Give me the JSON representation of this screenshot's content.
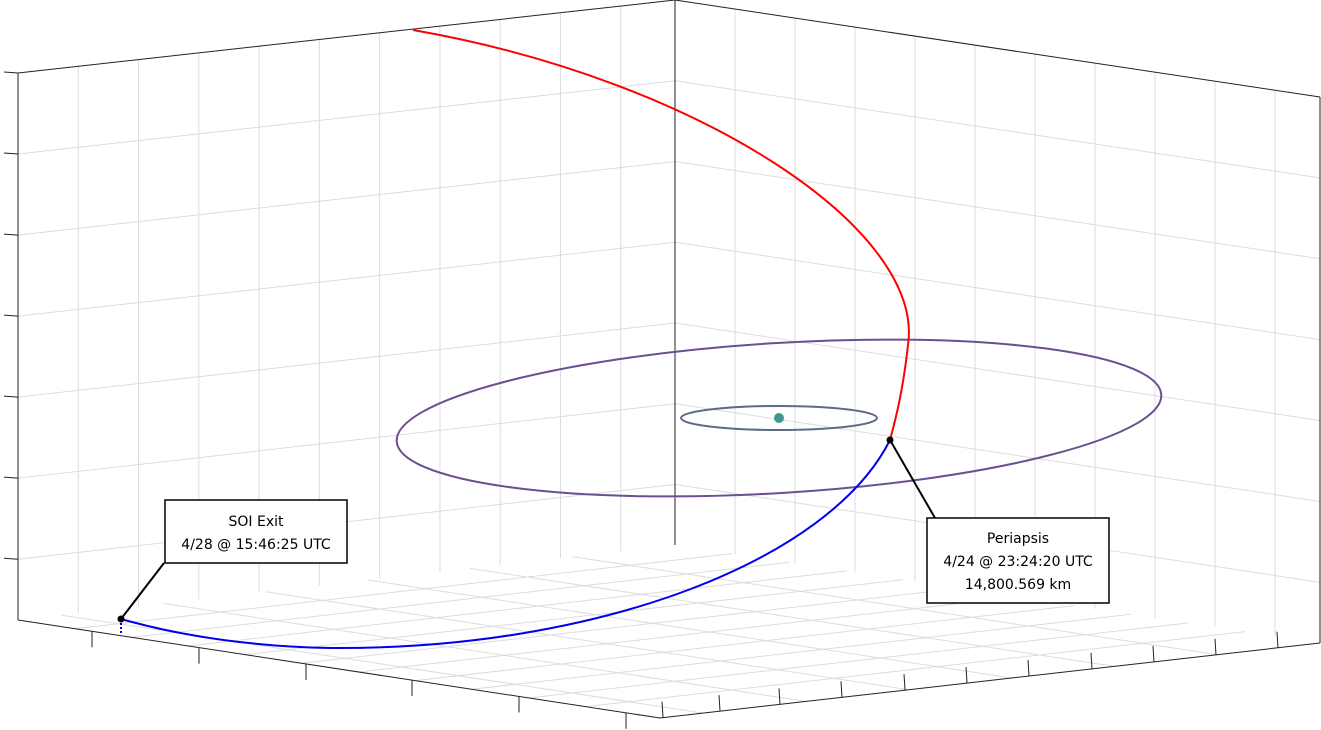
{
  "annotations": [
    {
      "lines": [
        "SOI Exit",
        "4/28 @ 15:46:25 UTC"
      ]
    },
    {
      "lines": [
        "Periapsis",
        "4/24 @ 23:24:20 UTC",
        "14,800.569 km"
      ]
    }
  ]
}
